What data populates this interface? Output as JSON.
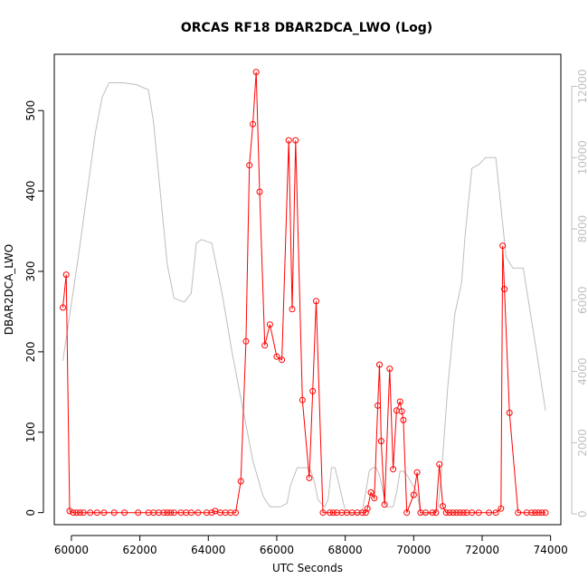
{
  "chart_data": {
    "type": "line",
    "title": "ORCAS RF18 DBAR2DCA_LWO (Log)",
    "xlabel": "UTC Seconds",
    "ylabel": "DBAR2DCA_LWO",
    "xlim": [
      59500,
      74300
    ],
    "ylim": [
      -15,
      570
    ],
    "x_ticks": [
      60000,
      62000,
      64000,
      66000,
      68000,
      70000,
      72000,
      74000
    ],
    "y_ticks": [
      0,
      100,
      200,
      300,
      400,
      500
    ],
    "y2lim": [
      -300,
      12900
    ],
    "y2_ticks": [
      0,
      2000,
      4000,
      6000,
      8000,
      10000,
      12000
    ],
    "colors": {
      "primary": "#ff0000",
      "secondary": "#bebebe"
    },
    "series": [
      {
        "axis": "left",
        "style": "line+points",
        "x": [
          59750,
          59850,
          59950,
          60050,
          60150,
          60250,
          60350,
          60550,
          60750,
          60950,
          61250,
          61550,
          61950,
          62250,
          62400,
          62550,
          62700,
          62800,
          62900,
          63000,
          63200,
          63350,
          63500,
          63700,
          63950,
          64100,
          64200,
          64350,
          64500,
          64650,
          64800,
          64950,
          65100,
          65200,
          65300,
          65400,
          65500,
          65650,
          65800,
          66000,
          66150,
          66350,
          66450,
          66550,
          66750,
          66950,
          67050,
          67150,
          67350,
          67550,
          67650,
          67750,
          67900,
          68050,
          68200,
          68350,
          68500,
          68600,
          68650,
          68750,
          68850,
          68950,
          69000,
          69050,
          69150,
          69300,
          69400,
          69500,
          69600,
          69650,
          69700,
          69800,
          70000,
          70100,
          70200,
          70350,
          70550,
          70650,
          70750,
          70850,
          70950,
          71050,
          71150,
          71250,
          71350,
          71450,
          71550,
          71700,
          71900,
          72200,
          72400,
          72550,
          72600,
          72650,
          72800,
          73050,
          73300,
          73450,
          73550,
          73650,
          73750,
          73850
        ],
        "y": [
          255,
          296,
          2,
          0,
          0,
          0,
          0,
          0,
          0,
          0,
          0,
          0,
          0,
          0,
          0,
          0,
          0,
          0,
          0,
          0,
          0,
          0,
          0,
          0,
          0,
          0,
          2,
          0,
          0,
          0,
          0,
          39,
          213,
          432,
          483,
          548,
          399,
          208,
          234,
          194,
          190,
          463,
          253,
          463,
          140,
          43,
          151,
          263,
          0,
          0,
          0,
          0,
          0,
          0,
          0,
          0,
          0,
          0,
          5,
          25,
          18,
          133,
          184,
          89,
          10,
          179,
          54,
          127,
          138,
          126,
          115,
          0,
          22,
          50,
          0,
          0,
          0,
          0,
          60,
          8,
          0,
          0,
          0,
          0,
          0,
          0,
          0,
          0,
          0,
          0,
          0,
          5,
          332,
          278,
          124,
          0,
          0,
          0,
          0,
          0,
          0,
          0
        ]
      },
      {
        "axis": "right",
        "style": "line",
        "x": [
          59750,
          60200,
          60700,
          60900,
          61100,
          61500,
          61900,
          62250,
          62400,
          62600,
          62800,
          63000,
          63300,
          63500,
          63650,
          63800,
          63950,
          64100,
          64400,
          64700,
          65000,
          65300,
          65600,
          65800,
          66100,
          66300,
          66400,
          66600,
          66700,
          66800,
          66900,
          67000,
          67100,
          67200,
          67400,
          67500,
          67600,
          67700,
          67800,
          67900,
          68000,
          68200,
          68400,
          68500,
          68600,
          68700,
          68800,
          68900,
          69000,
          69200,
          69400,
          69500,
          69600,
          69700,
          69800,
          70100,
          70200,
          70300,
          70500,
          70700,
          70800,
          71000,
          71200,
          71400,
          71500,
          71700,
          71900,
          72100,
          72400,
          72700,
          72900,
          73200,
          73600,
          73850
        ],
        "y": [
          4300,
          7200,
          10700,
          11700,
          12100,
          12100,
          12050,
          11900,
          11000,
          9000,
          7000,
          6050,
          5950,
          6200,
          7600,
          7700,
          7650,
          7600,
          6200,
          4500,
          3000,
          1500,
          500,
          200,
          200,
          300,
          800,
          1300,
          1300,
          1300,
          1300,
          1200,
          900,
          400,
          200,
          400,
          1300,
          1300,
          900,
          500,
          100,
          0,
          0,
          100,
          600,
          1200,
          1300,
          1300,
          1100,
          200,
          200,
          600,
          1200,
          1200,
          1100,
          600,
          0,
          0,
          0,
          100,
          1000,
          3600,
          5600,
          6500,
          7800,
          9700,
          9800,
          10000,
          10000,
          7200,
          6900,
          6900,
          4500,
          2900
        ]
      }
    ]
  }
}
